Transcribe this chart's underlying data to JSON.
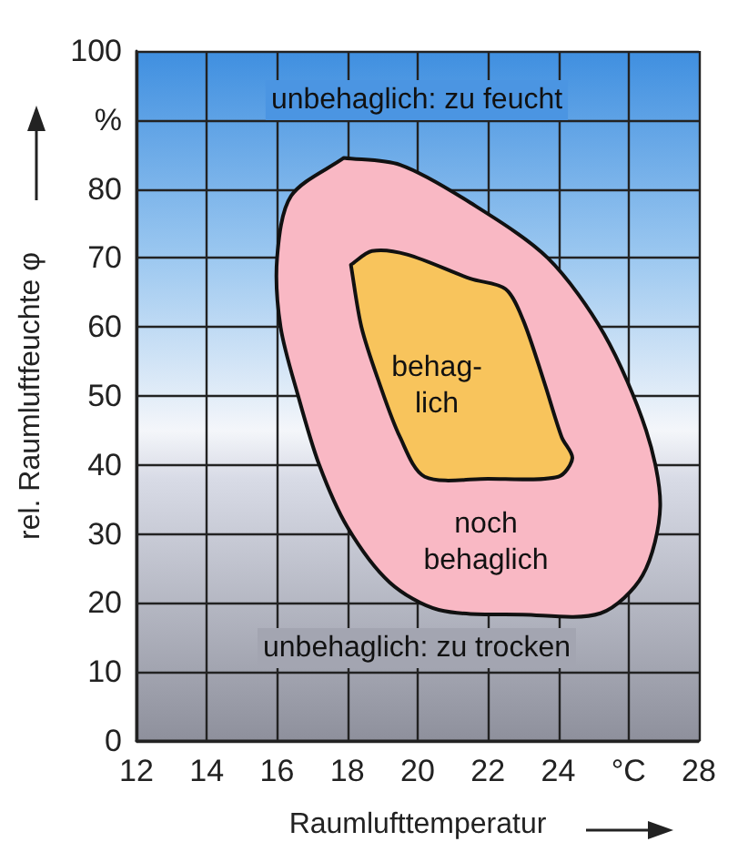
{
  "chart_data": {
    "type": "area",
    "xlabel": "Raumlufttemperatur",
    "ylabel": "rel. Raumluftfeuchte φ",
    "xlim": [
      12,
      28
    ],
    "xticks": [
      12,
      14,
      16,
      18,
      20,
      22,
      24,
      {
        "value": 26,
        "label": "°C"
      },
      28
    ],
    "ylim": [
      0,
      100
    ],
    "yticks": [
      0,
      10,
      20,
      30,
      40,
      50,
      60,
      70,
      80,
      {
        "value": 90,
        "label": "%"
      },
      100
    ],
    "grid": true,
    "series": [
      {
        "color": "#f9b8c4",
        "x": [
          17.9,
          19.5,
          21.5,
          23.7,
          25.3,
          26.5,
          26.9,
          26.4,
          25.2,
          23,
          20.6,
          19.2,
          18,
          17.2,
          16.6,
          16.1,
          16,
          16.4,
          17.9
        ],
        "values": [
          84.5,
          83.5,
          78,
          70,
          59,
          45,
          34,
          24,
          18.5,
          18.3,
          19,
          23,
          31,
          40,
          50,
          60,
          70,
          79,
          84.5
        ]
      },
      {
        "color": "#f8c45c",
        "x": [
          18.1,
          18.7,
          19.7,
          21.5,
          22.5,
          23,
          23.6,
          24.1,
          24.4,
          24,
          22,
          20.2,
          19.5,
          18.9,
          18.4,
          18.1
        ],
        "values": [
          69,
          71,
          70.5,
          67,
          65.5,
          61,
          52,
          44,
          41,
          38.3,
          38,
          38.3,
          44,
          52,
          60,
          69
        ]
      }
    ],
    "annotations": [
      "unbehaglich: zu feucht",
      "behag-\nlich",
      "noch\nbehaglich",
      "unbehaglich: zu trocken"
    ]
  }
}
